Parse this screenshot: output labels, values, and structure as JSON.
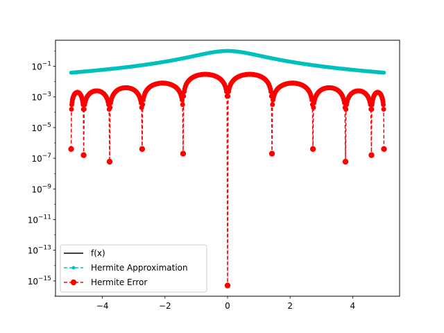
{
  "chart_data": {
    "type": "line",
    "title": "",
    "xlabel": "",
    "ylabel": "",
    "xlim": [
      -5.5,
      5.5
    ],
    "ylim": [
      1e-16,
      5
    ],
    "yscale": "log",
    "grid": false,
    "legend_position": "lower-left",
    "x_ticks": [
      -4,
      -2,
      0,
      2,
      4
    ],
    "x_tick_labels": [
      "−4",
      "−2",
      "0",
      "2",
      "4"
    ],
    "y_ticks": [
      0.1,
      0.001,
      1e-05,
      1e-07,
      1e-09,
      1e-11,
      1e-13,
      1e-15
    ],
    "y_tick_labels": [
      {
        "base": "10",
        "exp": "−1"
      },
      {
        "base": "10",
        "exp": "−3"
      },
      {
        "base": "10",
        "exp": "−5"
      },
      {
        "base": "10",
        "exp": "−7"
      },
      {
        "base": "10",
        "exp": "−9"
      },
      {
        "base": "10",
        "exp": "−11"
      },
      {
        "base": "10",
        "exp": "−13"
      },
      {
        "base": "10",
        "exp": "−15"
      }
    ],
    "series": [
      {
        "name": "f(x)",
        "color": "#000000",
        "style": "solid",
        "marker": "none",
        "function": "1/(1+x^2)",
        "x_range": [
          -5,
          5
        ]
      },
      {
        "name": "Hermite Approximation",
        "color": "#00bfbf",
        "style": "dashed",
        "marker": "point",
        "function": "1/(1+x^2)",
        "x_range": [
          -5,
          5
        ]
      },
      {
        "name": "Hermite Error",
        "color": "#ff0000",
        "style": "dashed",
        "marker": "circle",
        "zeros": [
          -5,
          -4.6,
          -3.77,
          -2.73,
          -1.42,
          0,
          1.42,
          2.73,
          3.77,
          4.6,
          5
        ],
        "dip_minima": [
          4e-07,
          1.6e-07,
          6e-08,
          4e-07,
          2e-07,
          5e-16,
          2e-07,
          4e-07,
          6e-08,
          1.6e-07,
          4e-07
        ],
        "lobe_peaks": [
          0.002,
          0.0025,
          0.004,
          0.008,
          0.03,
          0.03,
          0.008,
          0.004,
          0.0025,
          0.002
        ]
      }
    ]
  }
}
